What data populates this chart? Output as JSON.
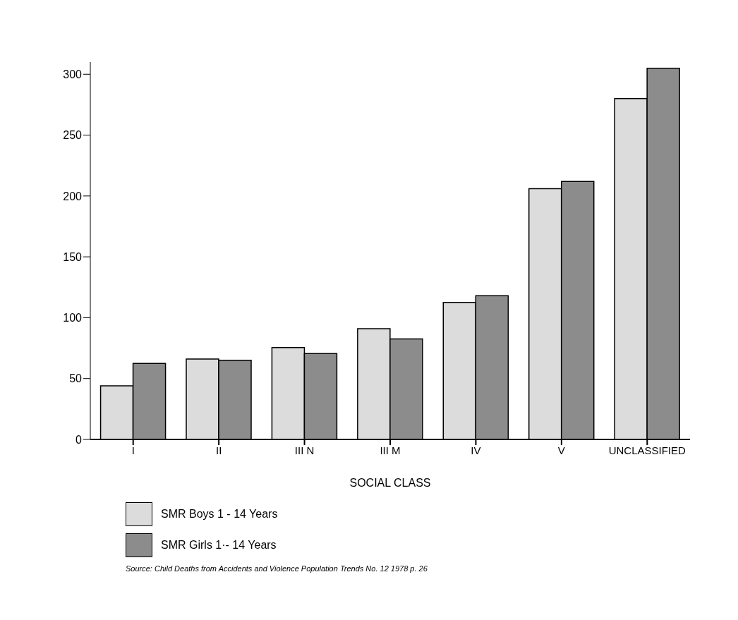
{
  "chart_data": {
    "type": "bar",
    "xlabel": "SOCIAL CLASS",
    "categories": [
      "I",
      "II",
      "III N",
      "III M",
      "IV",
      "V",
      "UNCLASSIFIED"
    ],
    "series": [
      {
        "name": "SMR Boys 1 - 14 Years",
        "color": "#dcdcdc",
        "values": [
          44,
          66,
          75.5,
          91,
          112.5,
          206,
          280
        ]
      },
      {
        "name": "SMR Girls 1·- 14 Years",
        "color": "#8c8c8c",
        "values": [
          62.5,
          65,
          70.5,
          82.5,
          118,
          212,
          305
        ]
      }
    ],
    "ylim": [
      0,
      310
    ],
    "yticks": [
      0,
      50,
      100,
      150,
      200,
      250,
      300
    ],
    "grid": false,
    "legend": "bottom left",
    "annotations": [
      "Source: Child Deaths from Accidents and Violence Population Trends No. 12 1978 p. 26"
    ]
  }
}
